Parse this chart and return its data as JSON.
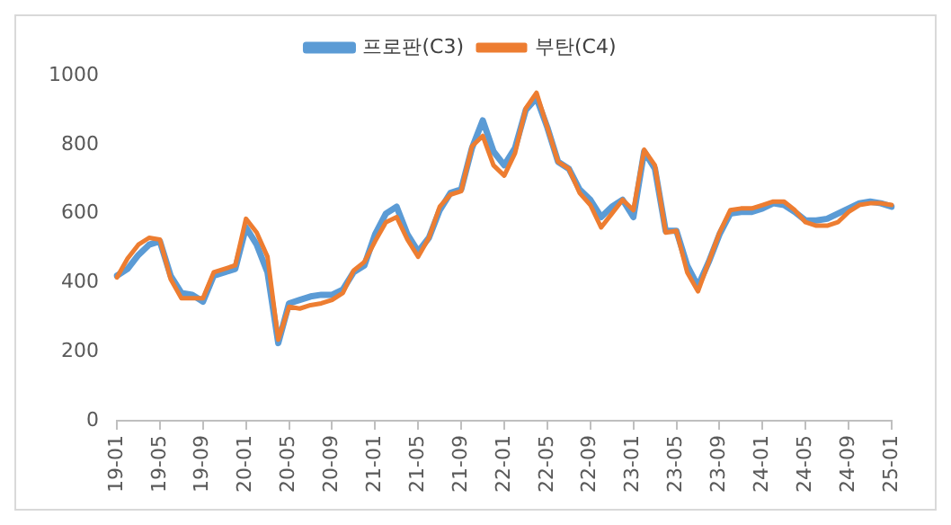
{
  "chart_data": {
    "type": "line",
    "categories": [
      "19-01",
      null,
      null,
      null,
      "19-05",
      null,
      null,
      null,
      "19-09",
      null,
      null,
      null,
      "20-01",
      null,
      null,
      null,
      "20-05",
      null,
      null,
      null,
      "20-09",
      null,
      null,
      null,
      "21-01",
      null,
      null,
      null,
      "21-05",
      null,
      null,
      null,
      "21-09",
      null,
      null,
      null,
      "22-01",
      null,
      null,
      null,
      "22-05",
      null,
      null,
      null,
      "22-09",
      null,
      null,
      null,
      "23-01",
      null,
      null,
      null,
      "23-05",
      null,
      null,
      null,
      "23-09",
      null,
      null,
      null,
      "24-01",
      null,
      null,
      null,
      "24-05",
      null,
      null,
      null,
      "24-09",
      null,
      null,
      null,
      "25-01"
    ],
    "series": [
      {
        "name": "프로판(C3)",
        "color": "#5b9bd5",
        "values": [
          420,
          440,
          480,
          510,
          520,
          420,
          370,
          365,
          345,
          420,
          430,
          440,
          560,
          510,
          430,
          225,
          340,
          350,
          360,
          365,
          365,
          380,
          430,
          450,
          540,
          600,
          620,
          540,
          490,
          530,
          610,
          660,
          670,
          790,
          870,
          780,
          740,
          790,
          900,
          935,
          850,
          750,
          730,
          670,
          640,
          590,
          620,
          640,
          590,
          780,
          730,
          550,
          550,
          450,
          390,
          460,
          540,
          600,
          605,
          605,
          615,
          630,
          625,
          605,
          580,
          580,
          585,
          600,
          615,
          630,
          635,
          630,
          620
        ]
      },
      {
        "name": "부탄(C4)",
        "color": "#ed7d31",
        "values": [
          415,
          470,
          510,
          530,
          525,
          410,
          355,
          355,
          355,
          430,
          440,
          450,
          585,
          545,
          475,
          235,
          330,
          325,
          335,
          340,
          350,
          370,
          435,
          460,
          520,
          575,
          590,
          525,
          475,
          530,
          620,
          655,
          665,
          795,
          825,
          740,
          710,
          775,
          905,
          950,
          850,
          750,
          730,
          660,
          625,
          560,
          600,
          640,
          610,
          785,
          740,
          545,
          550,
          430,
          375,
          460,
          545,
          610,
          615,
          615,
          625,
          635,
          635,
          610,
          575,
          565,
          565,
          575,
          605,
          625,
          630,
          630,
          625
        ]
      }
    ],
    "ylim": [
      0,
      1000
    ],
    "yticks": [
      0,
      200,
      400,
      600,
      800,
      1000
    ],
    "grid": false,
    "legend": "top",
    "marker": "none",
    "line_style": "solid"
  }
}
